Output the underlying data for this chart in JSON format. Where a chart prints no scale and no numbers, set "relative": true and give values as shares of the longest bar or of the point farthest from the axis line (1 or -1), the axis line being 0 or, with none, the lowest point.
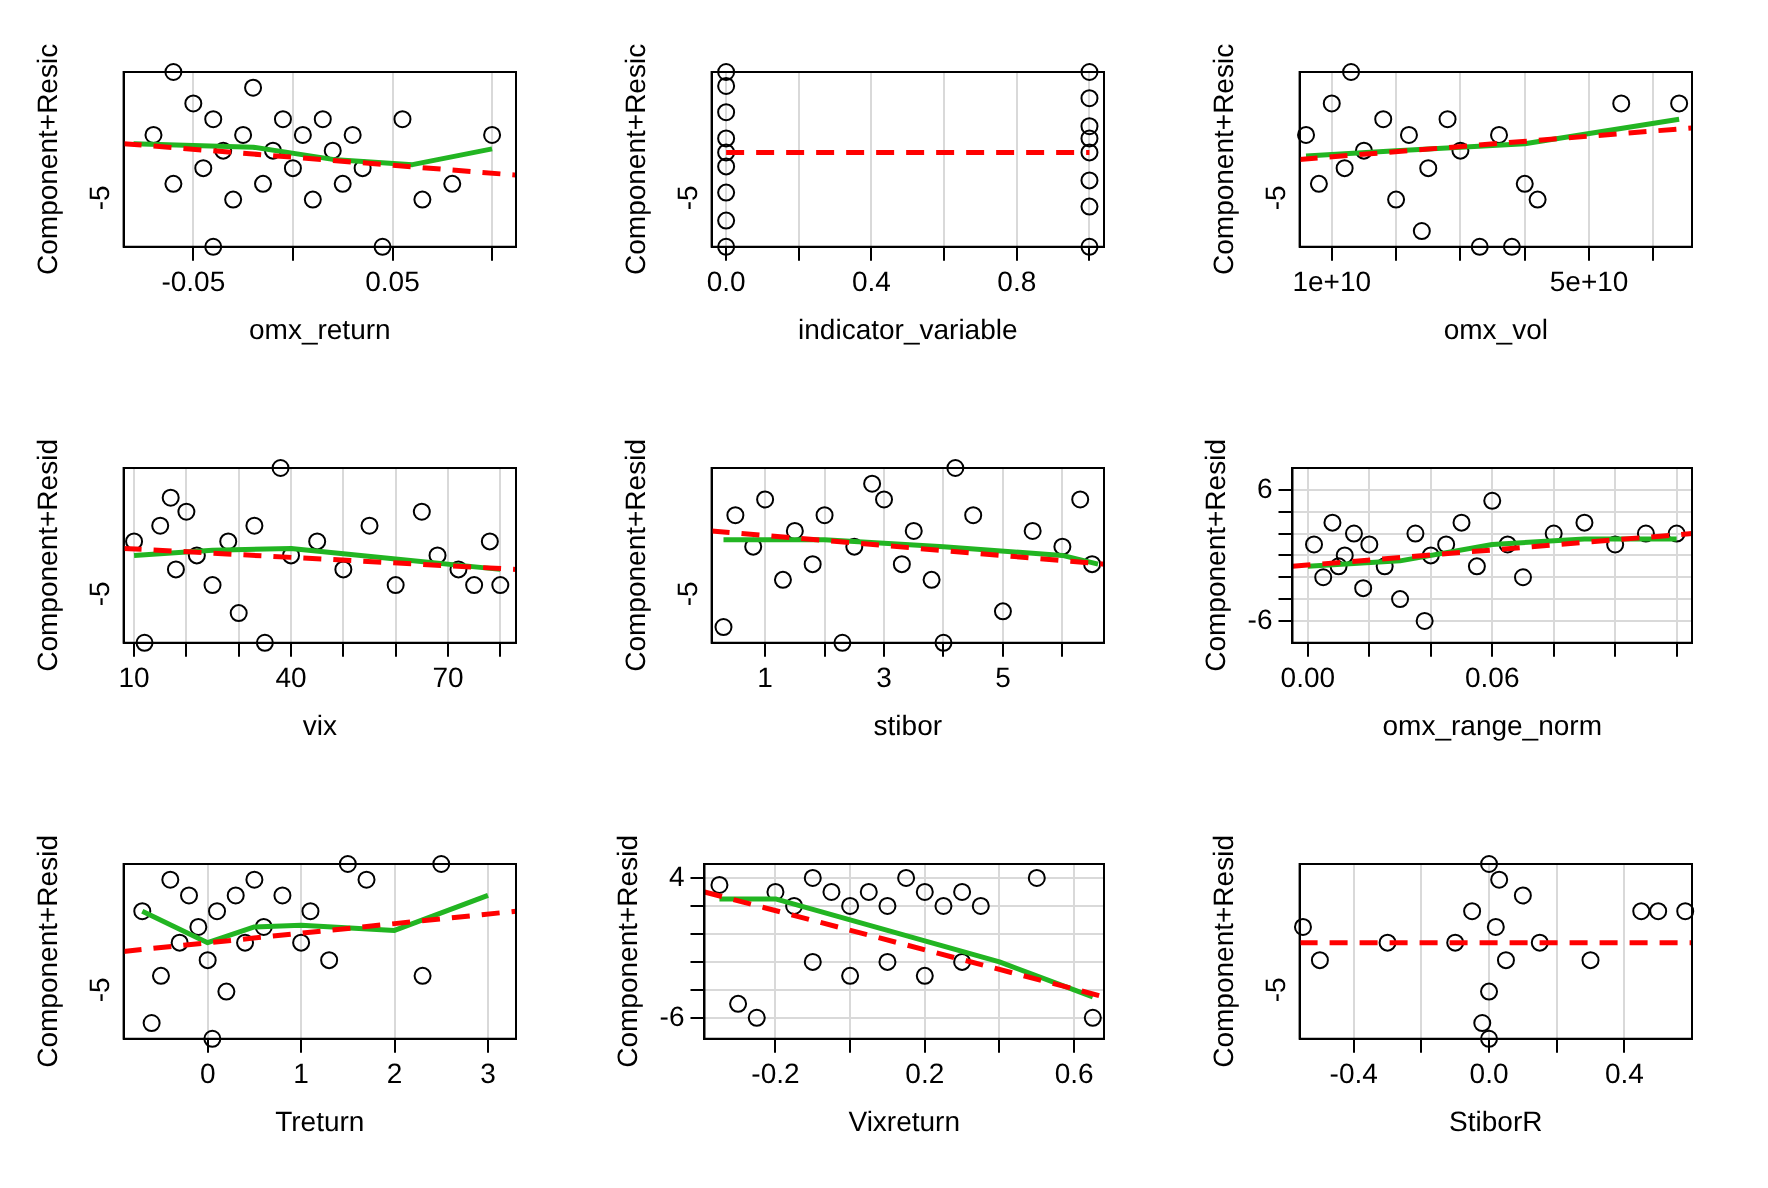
{
  "chart_data": [
    {
      "type": "scatter",
      "relative": true,
      "xlabel": "omx_return",
      "ylabel": "Component+Resic",
      "annotations": [
        "-5"
      ],
      "xlim": [
        -0.085,
        0.112
      ],
      "xticks": [
        -0.05,
        {
          "value": 0,
          "label": null
        },
        0.05,
        {
          "value": 0.1,
          "label": null
        }
      ],
      "grid": true,
      "series": [
        {
          "color": "#000000",
          "marker": "circle",
          "x": [
            -0.07,
            -0.06,
            -0.05,
            -0.045,
            -0.04,
            -0.035,
            -0.03,
            -0.025,
            -0.02,
            -0.015,
            -0.01,
            -0.005,
            0,
            0.005,
            0.01,
            0.015,
            0.02,
            0.025,
            0.03,
            0.035,
            0.045,
            0.055,
            0.065,
            0.08,
            0.1,
            -0.04,
            -0.06
          ],
          "values": [
            0.64,
            0.36,
            0.82,
            0.45,
            0.73,
            0.55,
            0.27,
            0.64,
            0.91,
            0.36,
            0.55,
            0.73,
            0.45,
            0.64,
            0.27,
            0.73,
            0.55,
            0.36,
            0.64,
            0.45,
            0,
            0.73,
            0.27,
            0.36,
            0.64,
            0,
            1
          ]
        },
        {
          "type": "line",
          "color": "#ff0000",
          "marker": "none",
          "line_style": "dashed",
          "x": [
            -0.085,
            0.112
          ],
          "values": [
            0.59,
            0.41
          ]
        },
        {
          "type": "line",
          "color": "#22b522",
          "marker": "none",
          "line_style": "solid",
          "x": [
            -0.08,
            -0.02,
            0.02,
            0.06,
            0.1
          ],
          "values": [
            0.59,
            0.57,
            0.5,
            0.47,
            0.56
          ]
        }
      ]
    },
    {
      "type": "scatter",
      "relative": true,
      "xlabel": "indicator_variable",
      "ylabel": "Component+Resic",
      "annotations": [
        "-5"
      ],
      "xlim": [
        -0.04,
        1.04
      ],
      "xticks": [
        {
          "value": 0,
          "label": "0.0"
        },
        {
          "value": 0.2,
          "label": null
        },
        {
          "value": 0.4,
          "label": "0.4"
        },
        {
          "value": 0.6,
          "label": null
        },
        {
          "value": 0.8,
          "label": "0.8"
        },
        {
          "value": 1,
          "label": null
        }
      ],
      "grid": true,
      "series": [
        {
          "color": "#000000",
          "marker": "circle",
          "x": [
            0,
            0,
            0,
            0,
            0,
            0,
            0,
            0,
            0,
            1,
            1,
            1,
            1,
            1,
            1,
            1,
            1
          ],
          "values": [
            0,
            0.15,
            0.31,
            0.46,
            0.54,
            0.62,
            0.77,
            0.92,
            1,
            0,
            0.23,
            0.38,
            0.54,
            0.62,
            0.69,
            0.85,
            1
          ]
        },
        {
          "type": "line",
          "color": "#ff0000",
          "marker": "none",
          "line_style": "dashed",
          "x": [
            0,
            1
          ],
          "values": [
            0.54,
            0.54
          ]
        }
      ]
    },
    {
      "type": "scatter",
      "relative": true,
      "xlabel": "omx_vol",
      "ylabel": "Component+Resic",
      "annotations": [
        "-5"
      ],
      "xlim": [
        5000000000,
        66000000000
      ],
      "xticks": [
        {
          "value": 10000000000,
          "label": "1e+10"
        },
        {
          "value": 20000000000,
          "label": null
        },
        {
          "value": 30000000000,
          "label": null
        },
        {
          "value": 40000000000,
          "label": null
        },
        {
          "value": 50000000000,
          "label": "5e+10"
        },
        {
          "value": 60000000000,
          "label": null
        }
      ],
      "grid": true,
      "series": [
        {
          "color": "#000000",
          "marker": "circle",
          "x": [
            6000000000,
            8000000000,
            10000000000,
            12000000000,
            15000000000,
            18000000000,
            20000000000,
            22000000000,
            25000000000,
            28000000000,
            30000000000,
            33000000000,
            36000000000,
            40000000000,
            42000000000,
            55000000000,
            64000000000,
            13000000000,
            24000000000,
            38000000000
          ],
          "values": [
            0.64,
            0.36,
            0.82,
            0.45,
            0.55,
            0.73,
            0.27,
            0.64,
            0.45,
            0.73,
            0.55,
            0,
            0.64,
            0.36,
            0.27,
            0.82,
            0.82,
            1,
            0.09,
            0
          ]
        },
        {
          "type": "line",
          "color": "#ff0000",
          "marker": "none",
          "line_style": "dashed",
          "x": [
            5000000000,
            66000000000
          ],
          "values": [
            0.5,
            0.68
          ]
        },
        {
          "type": "line",
          "color": "#22b522",
          "marker": "none",
          "line_style": "solid",
          "x": [
            6000000000,
            20000000000,
            40000000000,
            64000000000
          ],
          "values": [
            0.52,
            0.55,
            0.59,
            0.73
          ]
        }
      ]
    },
    {
      "type": "scatter",
      "relative": true,
      "xlabel": "vix",
      "ylabel": "Component+Resid",
      "annotations": [
        "-5"
      ],
      "xlim": [
        8,
        83
      ],
      "xticks": [
        10,
        {
          "value": 20,
          "label": null
        },
        {
          "value": 30,
          "label": null
        },
        40,
        {
          "value": 50,
          "label": null
        },
        {
          "value": 60,
          "label": null
        },
        70,
        {
          "value": 80,
          "label": null
        }
      ],
      "grid": true,
      "series": [
        {
          "color": "#000000",
          "marker": "circle",
          "x": [
            10,
            12,
            15,
            18,
            20,
            22,
            25,
            28,
            30,
            33,
            35,
            40,
            45,
            50,
            55,
            60,
            65,
            68,
            72,
            75,
            78,
            80,
            17,
            38
          ],
          "values": [
            0.58,
            0,
            0.67,
            0.42,
            0.75,
            0.5,
            0.33,
            0.58,
            0.17,
            0.67,
            0,
            0.5,
            0.58,
            0.42,
            0.67,
            0.33,
            0.75,
            0.5,
            0.42,
            0.33,
            0.58,
            0.33,
            0.83,
            1
          ]
        },
        {
          "type": "line",
          "color": "#ff0000",
          "marker": "none",
          "line_style": "dashed",
          "x": [
            8,
            83
          ],
          "values": [
            0.54,
            0.42
          ]
        },
        {
          "type": "line",
          "color": "#22b522",
          "marker": "none",
          "line_style": "solid",
          "x": [
            10,
            25,
            40,
            60,
            80
          ],
          "values": [
            0.5,
            0.53,
            0.54,
            0.48,
            0.42
          ]
        }
      ]
    },
    {
      "type": "scatter",
      "relative": true,
      "xlabel": "stibor",
      "ylabel": "Component+Resid",
      "annotations": [
        "-5"
      ],
      "xlim": [
        0.1,
        6.7
      ],
      "xticks": [
        1,
        {
          "value": 2,
          "label": null
        },
        3,
        {
          "value": 4,
          "label": null
        },
        5,
        {
          "value": 6,
          "label": null
        }
      ],
      "grid": true,
      "series": [
        {
          "color": "#000000",
          "marker": "circle",
          "x": [
            0.3,
            0.5,
            0.8,
            1,
            1.3,
            1.5,
            1.8,
            2,
            2.3,
            2.5,
            3,
            3.3,
            3.5,
            4,
            4.2,
            4.5,
            5,
            5.5,
            6,
            6.3,
            6.5,
            2.8,
            3.8
          ],
          "values": [
            0.09,
            0.73,
            0.55,
            0.82,
            0.36,
            0.64,
            0.45,
            0.73,
            0,
            0.55,
            0.82,
            0.45,
            0.64,
            0,
            1,
            0.73,
            0.18,
            0.64,
            0.55,
            0.82,
            0.45,
            0.91,
            0.36
          ]
        },
        {
          "type": "line",
          "color": "#ff0000",
          "marker": "none",
          "line_style": "dashed",
          "x": [
            0.1,
            6.7
          ],
          "values": [
            0.64,
            0.45
          ]
        },
        {
          "type": "line",
          "color": "#22b522",
          "marker": "none",
          "line_style": "solid",
          "x": [
            0.3,
            2,
            4,
            6,
            6.6
          ],
          "values": [
            0.59,
            0.59,
            0.55,
            0.5,
            0.45
          ]
        }
      ]
    },
    {
      "type": "scatter",
      "xlabel": "omx_range_norm",
      "ylabel": "Component+Resid",
      "xlim": [
        -0.005,
        0.125
      ],
      "ylim": [
        -8,
        8
      ],
      "xticks": [
        {
          "value": 0,
          "label": "0.00"
        },
        {
          "value": 0.02,
          "label": null
        },
        {
          "value": 0.04,
          "label": null
        },
        {
          "value": 0.06,
          "label": "0.06"
        },
        {
          "value": 0.08,
          "label": null
        },
        {
          "value": 0.1,
          "label": null
        },
        {
          "value": 0.12,
          "label": null
        }
      ],
      "yticks": [
        -6,
        {
          "value": -4,
          "label": null
        },
        {
          "value": -2,
          "label": null
        },
        {
          "value": 0,
          "label": null
        },
        {
          "value": 2,
          "label": null
        },
        {
          "value": 4,
          "label": null
        },
        6
      ],
      "grid": true,
      "series": [
        {
          "color": "#000000",
          "marker": "circle",
          "x": [
            0.002,
            0.005,
            0.008,
            0.01,
            0.012,
            0.015,
            0.018,
            0.02,
            0.025,
            0.03,
            0.035,
            0.04,
            0.045,
            0.05,
            0.055,
            0.06,
            0.065,
            0.07,
            0.08,
            0.09,
            0.1,
            0.11,
            0.12,
            0.038
          ],
          "values": [
            1,
            -2,
            3,
            -1,
            0,
            2,
            -3,
            1,
            -1,
            -4,
            2,
            0,
            1,
            3,
            -1,
            5,
            1,
            -2,
            2,
            3,
            1,
            2,
            2,
            -6
          ]
        },
        {
          "type": "line",
          "color": "#ff0000",
          "marker": "none",
          "line_style": "dashed",
          "x": [
            -0.005,
            0.125
          ],
          "values": [
            -1,
            2
          ]
        },
        {
          "type": "line",
          "color": "#22b522",
          "marker": "none",
          "line_style": "solid",
          "x": [
            0,
            0.03,
            0.06,
            0.09,
            0.12
          ],
          "values": [
            -1,
            -0.5,
            1,
            1.5,
            1.5
          ]
        }
      ]
    },
    {
      "type": "scatter",
      "relative": true,
      "xlabel": "Treturn",
      "ylabel": "Component+Resid",
      "annotations": [
        "-5"
      ],
      "xlim": [
        -0.9,
        3.3
      ],
      "xticks": [
        0,
        1,
        2,
        3
      ],
      "grid": true,
      "series": [
        {
          "color": "#000000",
          "marker": "circle",
          "x": [
            -0.7,
            -0.5,
            -0.4,
            -0.3,
            -0.2,
            -0.1,
            0,
            0.1,
            0.2,
            0.3,
            0.4,
            0.5,
            0.6,
            0.8,
            1,
            1.1,
            1.3,
            1.5,
            1.7,
            2.3,
            2.5,
            -0.6,
            0.05
          ],
          "values": [
            0.73,
            0.36,
            0.91,
            0.55,
            0.82,
            0.64,
            0.45,
            0.73,
            0.27,
            0.82,
            0.55,
            0.91,
            0.64,
            0.82,
            0.55,
            0.73,
            0.45,
            1,
            0.91,
            0.36,
            1,
            0.09,
            0
          ]
        },
        {
          "type": "line",
          "color": "#ff0000",
          "marker": "none",
          "line_style": "dashed",
          "x": [
            -0.9,
            3.3
          ],
          "values": [
            0.5,
            0.73
          ]
        },
        {
          "type": "line",
          "color": "#22b522",
          "marker": "none",
          "line_style": "solid",
          "x": [
            -0.7,
            0,
            0.5,
            1,
            2,
            3
          ],
          "values": [
            0.73,
            0.55,
            0.64,
            0.65,
            0.62,
            0.82
          ]
        }
      ]
    },
    {
      "type": "scatter",
      "xlabel": "Vixreturn",
      "ylabel": "Component+Resid",
      "xlim": [
        -0.39,
        0.68
      ],
      "ylim": [
        -7.5,
        5
      ],
      "xticks": [
        -0.2,
        {
          "value": 0,
          "label": null
        },
        0.2,
        {
          "value": 0.4,
          "label": null
        },
        0.6
      ],
      "yticks": [
        -6,
        {
          "value": -4,
          "label": null
        },
        {
          "value": -2,
          "label": null
        },
        {
          "value": 0,
          "label": null
        },
        {
          "value": 2,
          "label": null
        },
        4
      ],
      "grid": true,
      "series": [
        {
          "color": "#000000",
          "marker": "circle",
          "x": [
            -0.35,
            -0.3,
            -0.25,
            -0.2,
            -0.15,
            -0.1,
            -0.05,
            0,
            0.05,
            0.1,
            0.15,
            0.2,
            0.25,
            0.3,
            0.35,
            -0.1,
            0,
            0.1,
            0.2,
            0.3,
            0.5,
            0.65
          ],
          "values": [
            3.5,
            -5,
            -6,
            3,
            2,
            4,
            3,
            2,
            3,
            2,
            4,
            3,
            2,
            3,
            2,
            -2,
            -3,
            -2,
            -3,
            -2,
            4,
            -6
          ]
        },
        {
          "type": "line",
          "color": "#ff0000",
          "marker": "none",
          "line_style": "dashed",
          "x": [
            -0.39,
            0.68
          ],
          "values": [
            3,
            -4.5
          ]
        },
        {
          "type": "line",
          "color": "#22b522",
          "marker": "none",
          "line_style": "solid",
          "x": [
            -0.35,
            -0.2,
            0,
            0.2,
            0.4,
            0.65
          ],
          "values": [
            2.5,
            2.5,
            1,
            -0.5,
            -2,
            -4.5
          ]
        }
      ]
    },
    {
      "type": "scatter",
      "relative": true,
      "xlabel": "StiborR",
      "ylabel": "Component+Resid",
      "annotations": [
        "-5"
      ],
      "xlim": [
        -0.56,
        0.6
      ],
      "xticks": [
        -0.4,
        {
          "value": -0.2,
          "label": null
        },
        {
          "value": 0,
          "label": "0.0"
        },
        {
          "value": 0.2,
          "label": null
        },
        0.4
      ],
      "grid": true,
      "series": [
        {
          "color": "#000000",
          "marker": "circle",
          "x": [
            -0.55,
            -0.5,
            -0.3,
            -0.1,
            -0.05,
            0,
            0,
            0,
            0.02,
            0.05,
            0.1,
            0.15,
            0.3,
            0.45,
            0.5,
            0.58,
            -0.02,
            0.03
          ],
          "values": [
            0.64,
            0.45,
            0.55,
            0.55,
            0.73,
            1,
            0.27,
            0,
            0.64,
            0.45,
            0.82,
            0.55,
            0.45,
            0.73,
            0.73,
            0.73,
            0.09,
            0.91
          ]
        },
        {
          "type": "line",
          "color": "#ff0000",
          "marker": "none",
          "line_style": "dashed",
          "x": [
            -0.56,
            0.6
          ],
          "values": [
            0.55,
            0.55
          ]
        }
      ]
    }
  ]
}
